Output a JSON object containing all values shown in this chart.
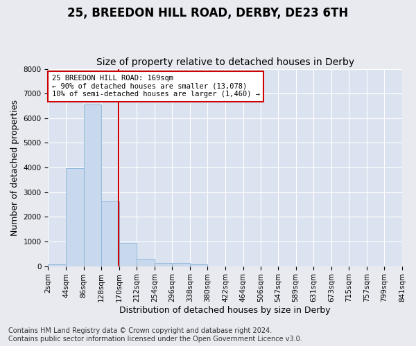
{
  "title": "25, BREEDON HILL ROAD, DERBY, DE23 6TH",
  "subtitle": "Size of property relative to detached houses in Derby",
  "xlabel": "Distribution of detached houses by size in Derby",
  "ylabel": "Number of detached properties",
  "footnote1": "Contains HM Land Registry data © Crown copyright and database right 2024.",
  "footnote2": "Contains public sector information licensed under the Open Government Licence v3.0.",
  "annotation_line1": "25 BREEDON HILL ROAD: 169sqm",
  "annotation_line2": "← 90% of detached houses are smaller (13,078)",
  "annotation_line3": "10% of semi-detached houses are larger (1,460) →",
  "property_size": 169,
  "bin_edges": [
    2,
    44,
    86,
    128,
    170,
    212,
    254,
    296,
    338,
    380,
    422,
    464,
    506,
    547,
    589,
    631,
    673,
    715,
    757,
    799,
    841
  ],
  "bar_heights": [
    75,
    3975,
    6550,
    2625,
    950,
    300,
    120,
    115,
    85,
    0,
    0,
    0,
    0,
    0,
    0,
    0,
    0,
    0,
    0,
    0
  ],
  "bar_color": "#c8d8ed",
  "bar_edgecolor": "#8ab4d8",
  "highlight_line_color": "#cc0000",
  "ylim": [
    0,
    8000
  ],
  "yticks": [
    0,
    1000,
    2000,
    3000,
    4000,
    5000,
    6000,
    7000,
    8000
  ],
  "bg_color": "#e8eaf0",
  "plot_bg_color": "#dce3f0",
  "grid_color": "#ffffff",
  "title_fontsize": 12,
  "subtitle_fontsize": 10,
  "axis_label_fontsize": 9,
  "tick_fontsize": 7.5,
  "footnote_fontsize": 7
}
